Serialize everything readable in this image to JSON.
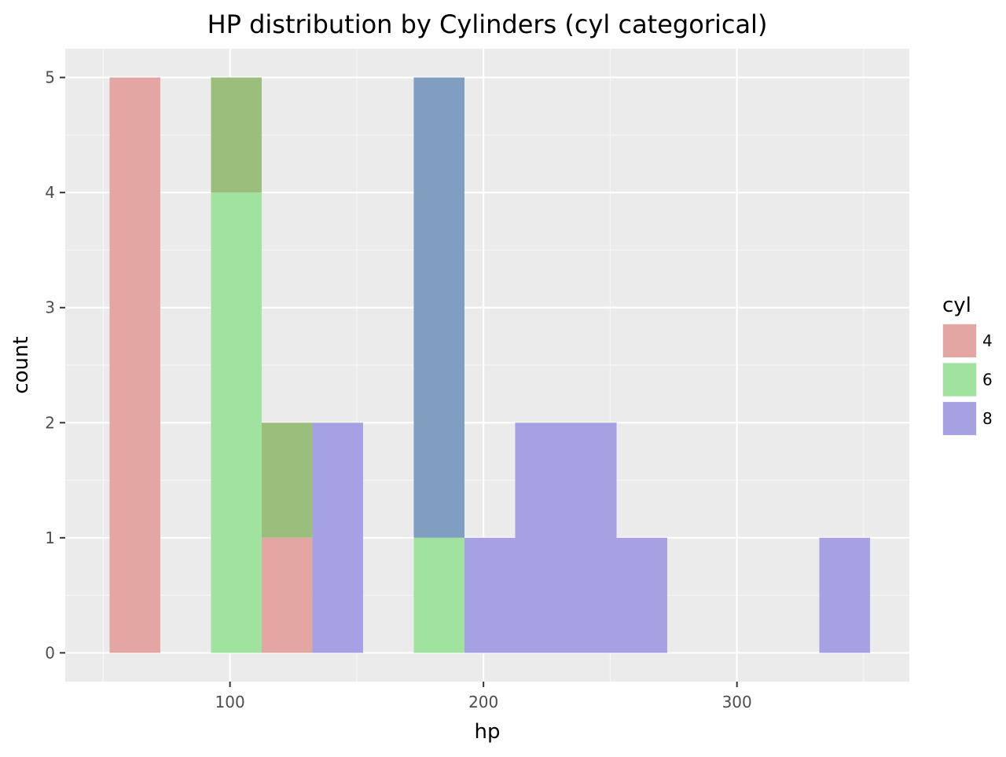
{
  "chart_data": {
    "type": "bar",
    "title": "HP distribution by Cylinders (cyl categorical)",
    "xlabel": "hp",
    "ylabel": "count",
    "xlim": [
      35,
      368
    ],
    "ylim": [
      -0.25,
      5.25
    ],
    "x_ticks": [
      100,
      200,
      300
    ],
    "y_ticks": [
      0,
      1,
      2,
      3,
      4,
      5
    ],
    "bins": [
      [
        52.5,
        72.5
      ],
      [
        72.5,
        92.5
      ],
      [
        92.5,
        112.5
      ],
      [
        112.5,
        132.5
      ],
      [
        132.5,
        152.5
      ],
      [
        152.5,
        172.5
      ],
      [
        172.5,
        192.5
      ],
      [
        192.5,
        212.5
      ],
      [
        212.5,
        232.5
      ],
      [
        232.5,
        252.5
      ],
      [
        252.5,
        272.5
      ],
      [
        272.5,
        292.5
      ],
      [
        292.5,
        312.5
      ],
      [
        312.5,
        332.5
      ],
      [
        332.5,
        352.5
      ]
    ],
    "series": [
      {
        "name": "4",
        "color": "#F8766D",
        "values": [
          5,
          0,
          5,
          1,
          0,
          0,
          0,
          0,
          0,
          0,
          0,
          0,
          0,
          0,
          0
        ]
      },
      {
        "name": "6",
        "color": "#00BA38",
        "values": [
          0,
          0,
          4,
          2,
          0,
          0,
          1,
          0,
          0,
          0,
          0,
          0,
          0,
          0,
          0
        ]
      },
      {
        "name": "8",
        "color": "#619CFF",
        "values": [
          0,
          0,
          0,
          0,
          2,
          0,
          5,
          1,
          2,
          2,
          1,
          0,
          0,
          0,
          1
        ]
      }
    ],
    "display_colors": {
      "4": "#E4A6A3",
      "6": "#A0E39E",
      "8": "#A5A1E3"
    },
    "overlap_colors": {
      "4+6": "#9CBE7C",
      "6+8": "#7F9EC0"
    },
    "legend_title": "cyl",
    "legend_position": "right",
    "grid": true
  }
}
